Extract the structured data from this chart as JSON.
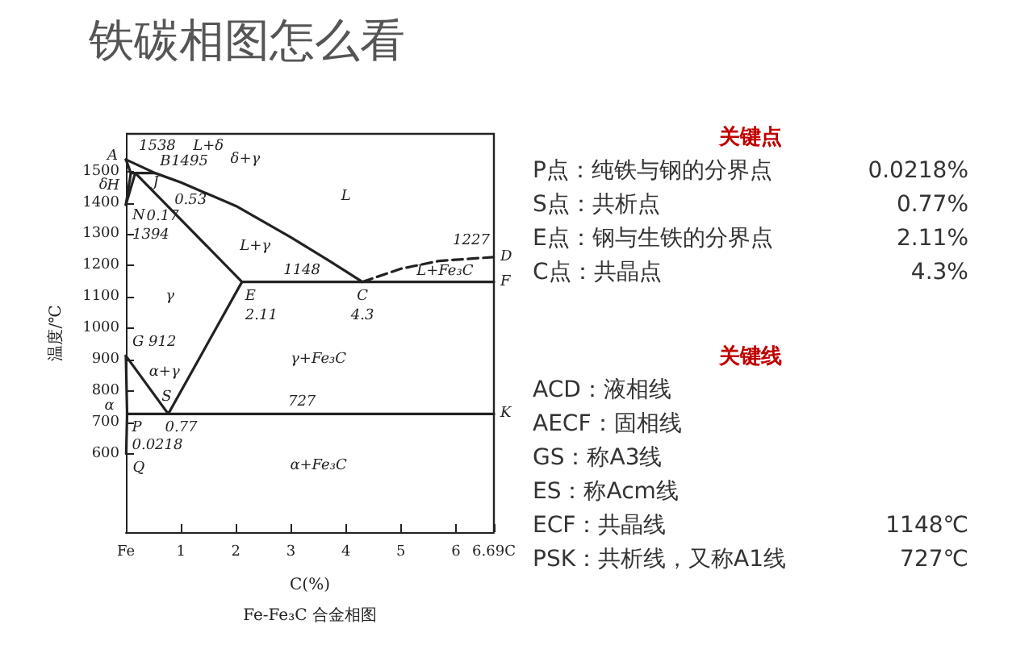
{
  "chart_data": [
    {
      "type": "line",
      "title": "铁碳相图怎么看",
      "xlabel": "C(%)",
      "ylabel": "温度/℃",
      "xlim": [
        0,
        6.69
      ],
      "ylim": [
        350,
        1620
      ],
      "xticks": [
        {
          "value": 0,
          "label": "Fe"
        },
        1,
        2,
        3,
        4,
        5,
        6,
        {
          "value": 6.69,
          "label": "6.69C"
        }
      ],
      "yticks": [
        600,
        700,
        800,
        900,
        1000,
        1100,
        1200,
        1300,
        1400,
        1500
      ],
      "grid": false,
      "marker": "none",
      "series": [
        {
          "color": "#222222",
          "line_style": "solid",
          "x": [
            0,
            0.53,
            1,
            2,
            3,
            3.7,
            4.3
          ],
          "values": [
            1538,
            1495,
            1465,
            1390,
            1290,
            1215,
            1148
          ]
        },
        {
          "color": "#222222",
          "line_style": "dashed",
          "x": [
            4.3,
            5,
            5.7,
            6.69
          ],
          "values": [
            1148,
            1190,
            1215,
            1227
          ]
        },
        {
          "color": "#222222",
          "line_style": "solid",
          "x": [
            0,
            0.09,
            0
          ],
          "values": [
            1538,
            1495,
            1394
          ]
        },
        {
          "color": "#222222",
          "line_style": "solid",
          "x": [
            0.09,
            0.53
          ],
          "values": [
            1495,
            1495
          ]
        },
        {
          "color": "#222222",
          "line_style": "solid",
          "x": [
            0,
            0.17,
            2.11
          ],
          "values": [
            1394,
            1495,
            1148
          ]
        },
        {
          "color": "#222222",
          "line_style": "solid",
          "x": [
            2.11,
            6.69
          ],
          "values": [
            1148,
            1148
          ]
        },
        {
          "color": "#222222",
          "line_style": "solid",
          "x": [
            0,
            0.77,
            2.11
          ],
          "values": [
            912,
            727,
            1148
          ]
        },
        {
          "color": "#222222",
          "line_style": "solid",
          "x": [
            0,
            0.0218,
            0.0057
          ],
          "values": [
            912,
            727,
            600
          ]
        },
        {
          "color": "#222222",
          "line_style": "solid",
          "x": [
            0.0218,
            6.69
          ],
          "values": [
            727,
            727
          ]
        }
      ],
      "annotations": [
        {
          "text": "A",
          "x": 0,
          "y": 1538
        },
        {
          "text": "1538",
          "x": 0,
          "y": 1538
        },
        "L+δ",
        {
          "text": "H",
          "x": 0.09,
          "y": 1495
        },
        {
          "text": "B",
          "x": 0.53,
          "y": 1495
        },
        {
          "text": "1495",
          "x": 0.53,
          "y": 1495
        },
        "δ+γ",
        {
          "text": "J",
          "x": 0.17,
          "y": 1495
        },
        "δ",
        {
          "text": "0.17",
          "x": 0.17,
          "y": 1495
        },
        {
          "text": "0.53",
          "x": 0.53,
          "y": 1495
        },
        {
          "text": "N",
          "x": 0,
          "y": 1394
        },
        {
          "text": "1394",
          "x": 0,
          "y": 1394
        },
        "L",
        "L+γ",
        "γ",
        {
          "text": "E",
          "x": 2.11,
          "y": 1148
        },
        {
          "text": "2.11",
          "x": 2.11,
          "y": 1148
        },
        {
          "text": "1148",
          "x": 3.2,
          "y": 1148
        },
        {
          "text": "C",
          "x": 4.3,
          "y": 1148
        },
        {
          "text": "4.3",
          "x": 4.3,
          "y": 1148
        },
        {
          "text": "1227",
          "x": 6.69,
          "y": 1227
        },
        {
          "text": "D",
          "x": 6.69,
          "y": 1227
        },
        "L+Fe₃C",
        {
          "text": "F",
          "x": 6.69,
          "y": 1148
        },
        "γ+Fe₃C",
        {
          "text": "G",
          "x": 0,
          "y": 912
        },
        {
          "text": "912",
          "x": 0,
          "y": 912
        },
        "α+γ",
        {
          "text": "S",
          "x": 0.77,
          "y": 727
        },
        {
          "text": "0.77",
          "x": 0.77,
          "y": 727
        },
        {
          "text": "727",
          "x": 3.2,
          "y": 727
        },
        {
          "text": "K",
          "x": 6.69,
          "y": 727
        },
        "α",
        {
          "text": "P",
          "x": 0.0218,
          "y": 727
        },
        {
          "text": "0.0218",
          "x": 0.0218,
          "y": 727
        },
        {
          "text": "Q",
          "x": 0.0057,
          "y": 600
        },
        "α+Fe₃C",
        "Fe-Fe₃C 合金相图"
      ]
    },
    {
      "type": "other",
      "title": "关键点",
      "categories": [
        "P点：纯铁与钢的分界点",
        "S点：共析点",
        "E点：钢与生铁的分界点",
        "C点：共晶点"
      ],
      "value_labels": [
        "0.0218%",
        "0.77%",
        "2.11%",
        "4.3%"
      ]
    },
    {
      "type": "other",
      "title": "关键线",
      "categories": [
        "ACD：液相线",
        "AECF：固相线",
        "GS：称A3线",
        "ES：称Acm线",
        "ECF：共晶线",
        "PSK：共析线，又称A1线"
      ],
      "value_labels": [
        null,
        null,
        null,
        null,
        "1148℃",
        "727℃"
      ]
    }
  ]
}
